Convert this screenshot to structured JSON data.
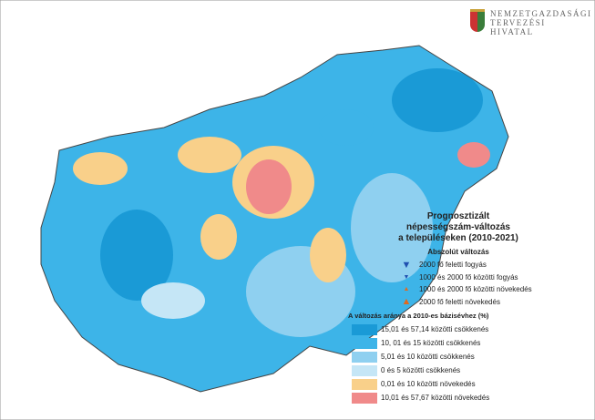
{
  "header": {
    "logo_lines": [
      "Nemzetgazdasági",
      "Tervezési",
      "Hivatal"
    ]
  },
  "legend": {
    "title_lines": [
      "Prognosztizált",
      "népességszám-változás",
      "a településeken (2010-2021)"
    ],
    "absolute_title": "Abszolút változás",
    "absolute_items": [
      "2000 fő feletti fogyás",
      "1000 és 2000 fő közötti fogyás",
      "1000 és 2000 fő közötti növekedés",
      "2000 fő feletti növekedés"
    ],
    "ratio_title": "A változás aránya a 2010-es bázisévhez (%)",
    "ratio_items": [
      "15,01 és 57,14 közötti csökkenés",
      "10, 01 és 15 közötti csökkenés",
      "5,01 és 10 közötti csökkenés",
      "0 és 5 közötti csökkenés",
      "0,01 és 10 közötti növekedés",
      "10,01 és 57,67 közötti növekedés"
    ]
  }
}
